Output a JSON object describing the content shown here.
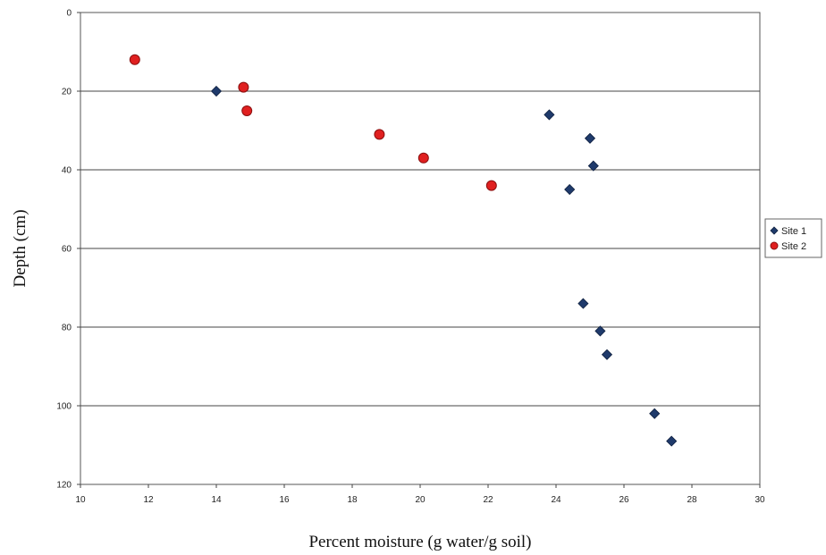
{
  "chart_data": {
    "type": "scatter",
    "title": "",
    "xlabel": "Percent moisture (g water/g soil)",
    "ylabel": "Depth (cm)",
    "xlim": [
      10,
      30
    ],
    "ylim": [
      0,
      120
    ],
    "y_inverted": true,
    "x_ticks": [
      10,
      12,
      14,
      16,
      18,
      20,
      22,
      24,
      26,
      28,
      30
    ],
    "y_ticks": [
      0,
      20,
      40,
      60,
      80,
      100,
      120
    ],
    "grid": "horizontal",
    "legend_position": "right",
    "series": [
      {
        "name": "Site 1",
        "marker": "diamond",
        "color": "#1f3a6b",
        "points": [
          {
            "x": 14.0,
            "y": 20
          },
          {
            "x": 23.8,
            "y": 26
          },
          {
            "x": 25.0,
            "y": 32
          },
          {
            "x": 25.1,
            "y": 39
          },
          {
            "x": 24.4,
            "y": 45
          },
          {
            "x": 24.8,
            "y": 74
          },
          {
            "x": 25.3,
            "y": 81
          },
          {
            "x": 25.5,
            "y": 87
          },
          {
            "x": 26.9,
            "y": 102
          },
          {
            "x": 27.4,
            "y": 109
          }
        ]
      },
      {
        "name": "Site 2",
        "marker": "circle",
        "color": "#e02020",
        "points": [
          {
            "x": 11.6,
            "y": 12
          },
          {
            "x": 14.8,
            "y": 19
          },
          {
            "x": 14.9,
            "y": 25
          },
          {
            "x": 18.8,
            "y": 31
          },
          {
            "x": 20.1,
            "y": 37
          },
          {
            "x": 22.1,
            "y": 44
          }
        ]
      }
    ]
  }
}
